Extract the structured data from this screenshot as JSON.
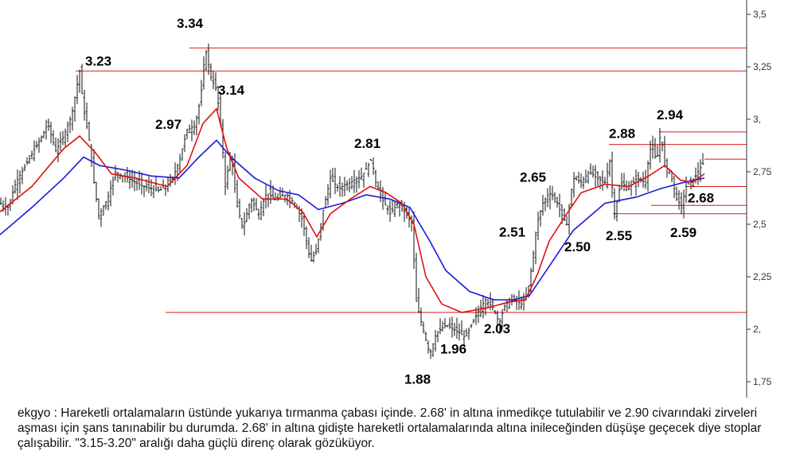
{
  "chart_data": {
    "type": "candlestick",
    "symbol": "ekgyo",
    "ylim": [
      1.75,
      3.5
    ],
    "y_ticks": [
      "3,5",
      "3,25",
      "3,",
      "2,75",
      "2,5",
      "2,25",
      "2,",
      "1,75"
    ],
    "y_tick_values": [
      3.5,
      3.25,
      3.0,
      2.75,
      2.5,
      2.25,
      2.0,
      1.75
    ],
    "price_path": [
      [
        0,
        2.6
      ],
      [
        10,
        2.58
      ],
      [
        20,
        2.7
      ],
      [
        35,
        2.8
      ],
      [
        50,
        2.9
      ],
      [
        60,
        2.98
      ],
      [
        70,
        2.85
      ],
      [
        80,
        2.92
      ],
      [
        90,
        3.02
      ],
      [
        100,
        3.23
      ],
      [
        105,
        3.05
      ],
      [
        112,
        2.9
      ],
      [
        118,
        2.7
      ],
      [
        124,
        2.54
      ],
      [
        135,
        2.62
      ],
      [
        145,
        2.75
      ],
      [
        160,
        2.72
      ],
      [
        180,
        2.68
      ],
      [
        200,
        2.66
      ],
      [
        215,
        2.7
      ],
      [
        225,
        2.8
      ],
      [
        235,
        2.95
      ],
      [
        245,
        2.97
      ],
      [
        252,
        3.1
      ],
      [
        258,
        3.34
      ],
      [
        265,
        3.2
      ],
      [
        272,
        3.14
      ],
      [
        278,
        2.95
      ],
      [
        283,
        2.68
      ],
      [
        290,
        2.85
      ],
      [
        297,
        2.6
      ],
      [
        305,
        2.48
      ],
      [
        315,
        2.62
      ],
      [
        325,
        2.55
      ],
      [
        335,
        2.65
      ],
      [
        345,
        2.62
      ],
      [
        360,
        2.64
      ],
      [
        370,
        2.6
      ],
      [
        380,
        2.52
      ],
      [
        390,
        2.32
      ],
      [
        398,
        2.38
      ],
      [
        405,
        2.55
      ],
      [
        415,
        2.72
      ],
      [
        425,
        2.67
      ],
      [
        440,
        2.7
      ],
      [
        455,
        2.73
      ],
      [
        467,
        2.81
      ],
      [
        472,
        2.7
      ],
      [
        480,
        2.62
      ],
      [
        490,
        2.55
      ],
      [
        500,
        2.6
      ],
      [
        510,
        2.55
      ],
      [
        518,
        2.5
      ],
      [
        522,
        2.15
      ],
      [
        528,
        2.05
      ],
      [
        535,
        1.95
      ],
      [
        540,
        1.88
      ],
      [
        548,
        1.98
      ],
      [
        560,
        2.02
      ],
      [
        570,
        2.0
      ],
      [
        578,
        1.98
      ],
      [
        585,
        1.96
      ],
      [
        592,
        2.02
      ],
      [
        600,
        2.08
      ],
      [
        610,
        2.14
      ],
      [
        620,
        2.1
      ],
      [
        627,
        2.03
      ],
      [
        635,
        2.12
      ],
      [
        645,
        2.14
      ],
      [
        655,
        2.12
      ],
      [
        662,
        2.16
      ],
      [
        668,
        2.3
      ],
      [
        675,
        2.51
      ],
      [
        682,
        2.6
      ],
      [
        690,
        2.65
      ],
      [
        698,
        2.62
      ],
      [
        705,
        2.55
      ],
      [
        712,
        2.5
      ],
      [
        720,
        2.72
      ],
      [
        730,
        2.7
      ],
      [
        740,
        2.75
      ],
      [
        750,
        2.72
      ],
      [
        760,
        2.7
      ],
      [
        766,
        2.8
      ],
      [
        772,
        2.55
      ],
      [
        780,
        2.7
      ],
      [
        790,
        2.67
      ],
      [
        800,
        2.72
      ],
      [
        810,
        2.7
      ],
      [
        818,
        2.88
      ],
      [
        825,
        2.8
      ],
      [
        830,
        2.94
      ],
      [
        835,
        2.78
      ],
      [
        842,
        2.75
      ],
      [
        850,
        2.62
      ],
      [
        856,
        2.59
      ],
      [
        862,
        2.68
      ],
      [
        872,
        2.72
      ],
      [
        885,
        2.8
      ]
    ],
    "moving_average_fast": [
      [
        0,
        2.56
      ],
      [
        40,
        2.68
      ],
      [
        80,
        2.86
      ],
      [
        100,
        2.92
      ],
      [
        120,
        2.84
      ],
      [
        140,
        2.74
      ],
      [
        170,
        2.72
      ],
      [
        210,
        2.68
      ],
      [
        235,
        2.78
      ],
      [
        255,
        2.98
      ],
      [
        272,
        3.05
      ],
      [
        285,
        2.86
      ],
      [
        300,
        2.72
      ],
      [
        330,
        2.62
      ],
      [
        360,
        2.62
      ],
      [
        380,
        2.56
      ],
      [
        398,
        2.44
      ],
      [
        415,
        2.55
      ],
      [
        440,
        2.62
      ],
      [
        465,
        2.68
      ],
      [
        485,
        2.65
      ],
      [
        505,
        2.6
      ],
      [
        520,
        2.5
      ],
      [
        535,
        2.25
      ],
      [
        555,
        2.12
      ],
      [
        580,
        2.08
      ],
      [
        610,
        2.1
      ],
      [
        640,
        2.13
      ],
      [
        660,
        2.14
      ],
      [
        675,
        2.26
      ],
      [
        690,
        2.42
      ],
      [
        712,
        2.55
      ],
      [
        730,
        2.65
      ],
      [
        760,
        2.69
      ],
      [
        790,
        2.68
      ],
      [
        815,
        2.73
      ],
      [
        835,
        2.78
      ],
      [
        855,
        2.71
      ],
      [
        870,
        2.7
      ],
      [
        885,
        2.74
      ]
    ],
    "moving_average_slow": [
      [
        0,
        2.45
      ],
      [
        40,
        2.58
      ],
      [
        80,
        2.72
      ],
      [
        105,
        2.82
      ],
      [
        125,
        2.78
      ],
      [
        155,
        2.76
      ],
      [
        190,
        2.73
      ],
      [
        225,
        2.72
      ],
      [
        250,
        2.82
      ],
      [
        272,
        2.9
      ],
      [
        290,
        2.82
      ],
      [
        320,
        2.72
      ],
      [
        350,
        2.66
      ],
      [
        375,
        2.64
      ],
      [
        400,
        2.57
      ],
      [
        430,
        2.6
      ],
      [
        460,
        2.64
      ],
      [
        490,
        2.62
      ],
      [
        515,
        2.58
      ],
      [
        540,
        2.42
      ],
      [
        560,
        2.28
      ],
      [
        590,
        2.18
      ],
      [
        620,
        2.14
      ],
      [
        645,
        2.14
      ],
      [
        665,
        2.16
      ],
      [
        690,
        2.3
      ],
      [
        720,
        2.47
      ],
      [
        760,
        2.6
      ],
      [
        800,
        2.63
      ],
      [
        830,
        2.67
      ],
      [
        860,
        2.7
      ],
      [
        885,
        2.72
      ]
    ],
    "levels": [
      {
        "value": 3.34,
        "from_x": 238
      },
      {
        "value": 3.23,
        "from_x": 95
      },
      {
        "value": 2.94,
        "from_x": 828
      },
      {
        "value": 2.88,
        "from_x": 765
      },
      {
        "value": 2.81,
        "from_x": 885
      },
      {
        "value": 2.68,
        "from_x": 862
      },
      {
        "value": 2.59,
        "from_x": 818
      },
      {
        "value": 2.55,
        "from_x": 770
      },
      {
        "value": 2.08,
        "from_x": 208
      }
    ],
    "annotations": [
      {
        "text": "3.34",
        "x": 258,
        "y": 3.34
      },
      {
        "text": "3.23",
        "x": 100,
        "y": 3.23
      },
      {
        "text": "2.97",
        "x": 245,
        "y": 2.97
      },
      {
        "text": "3.14",
        "x": 272,
        "y": 3.14
      },
      {
        "text": "2.81",
        "x": 467,
        "y": 2.81
      },
      {
        "text": "2.65",
        "x": 690,
        "y": 2.65
      },
      {
        "text": "2.51",
        "x": 675,
        "y": 2.51
      },
      {
        "text": "2.50",
        "x": 712,
        "y": 2.5
      },
      {
        "text": "2.55",
        "x": 772,
        "y": 2.55
      },
      {
        "text": "2.88",
        "x": 818,
        "y": 2.88
      },
      {
        "text": "2.94",
        "x": 830,
        "y": 2.94
      },
      {
        "text": "2.68",
        "x": 862,
        "y": 2.68
      },
      {
        "text": "2.59",
        "x": 856,
        "y": 2.59
      },
      {
        "text": "1.88",
        "x": 540,
        "y": 1.88
      },
      {
        "text": "1.96",
        "x": 585,
        "y": 1.96
      },
      {
        "text": "2.03",
        "x": 627,
        "y": 2.03
      }
    ],
    "colors": {
      "price": "#111111",
      "ma_fast": "#e01010",
      "ma_slow": "#1a1ad8",
      "level": "#d81818",
      "axis": "#333333"
    }
  },
  "comment": "ekgyo : Hareketli ortalamaların üstünde yukarıya tırmanma çabası içinde. 2.68' in altına inmedikçe tutulabilir ve 2.90 civarındaki zirveleri aşması için şans tanınabilir bu durumda. 2.68' in altına gidişte hareketli ortalamalarında altına inileceğinden düşüşe geçecek diye stoplar çalışabilir. \"3.15-3.20\" aralığı daha güçlü direnç olarak gözüküyor."
}
